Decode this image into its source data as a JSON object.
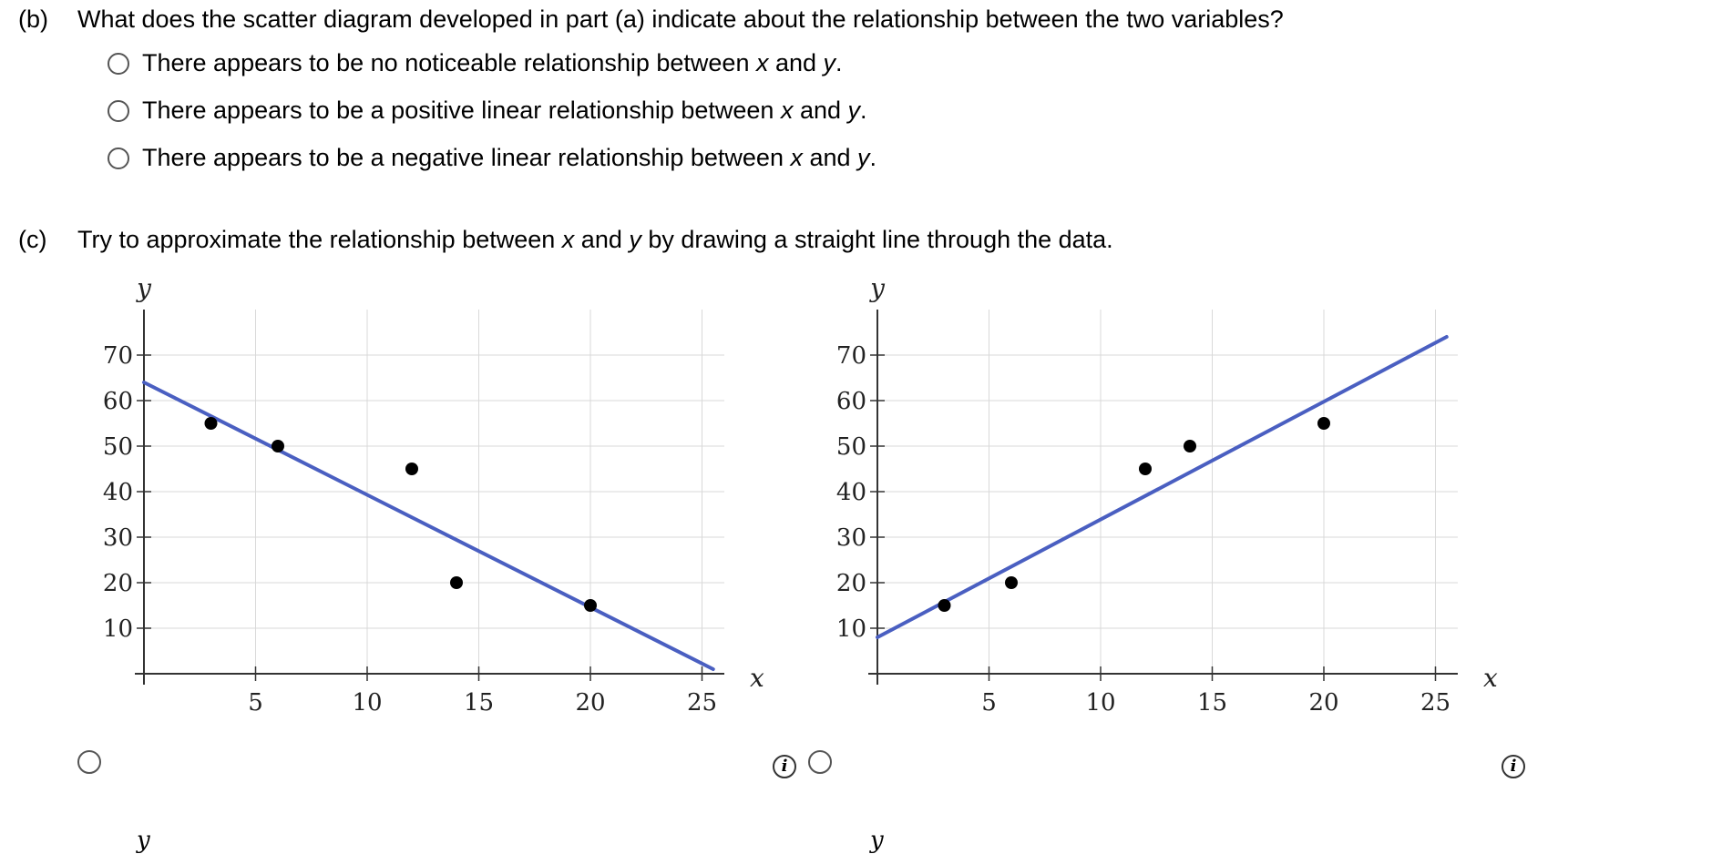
{
  "part_b": {
    "label": "(b)",
    "question": "What does the scatter diagram developed in part (a) indicate about the relationship between the two variables?",
    "options": [
      {
        "before": "There appears to be no noticeable relationship between ",
        "var1": "x",
        "mid": " and ",
        "var2": "y",
        "after": "."
      },
      {
        "before": "There appears to be a positive linear relationship between ",
        "var1": "x",
        "mid": " and ",
        "var2": "y",
        "after": "."
      },
      {
        "before": "There appears to be a negative linear relationship between ",
        "var1": "x",
        "mid": " and ",
        "var2": "y",
        "after": "."
      }
    ]
  },
  "part_c": {
    "label": "(c)",
    "q_before": "Try to approximate the relationship between ",
    "var1": "x",
    "q_mid": " and ",
    "var2": "y",
    "q_after": " by drawing a straight line through the data."
  },
  "info_icon_glyph": "i",
  "cut_label": "y",
  "colors": {
    "line": "#4a5fc1",
    "point": "#000000",
    "grid": "#d9d9d9",
    "axis": "#333333"
  },
  "chart_data": [
    {
      "type": "scatter",
      "title": "",
      "xlabel": "x",
      "ylabel": "y",
      "xlim": [
        0,
        26
      ],
      "ylim": [
        0,
        78
      ],
      "x_ticks": [
        5,
        10,
        15,
        20,
        25
      ],
      "y_ticks": [
        10,
        20,
        30,
        40,
        50,
        60,
        70
      ],
      "grid": true,
      "points": [
        [
          3,
          55
        ],
        [
          6,
          50
        ],
        [
          12,
          45
        ],
        [
          14,
          20
        ],
        [
          20,
          15
        ]
      ],
      "line": {
        "x1": 0,
        "y1": 64,
        "x2": 25.5,
        "y2": 1
      }
    },
    {
      "type": "scatter",
      "title": "",
      "xlabel": "x",
      "ylabel": "y",
      "xlim": [
        0,
        26
      ],
      "ylim": [
        0,
        78
      ],
      "x_ticks": [
        5,
        10,
        15,
        20,
        25
      ],
      "y_ticks": [
        10,
        20,
        30,
        40,
        50,
        60,
        70
      ],
      "grid": true,
      "points": [
        [
          3,
          15
        ],
        [
          6,
          20
        ],
        [
          12,
          45
        ],
        [
          14,
          50
        ],
        [
          20,
          55
        ]
      ],
      "line": {
        "x1": 0,
        "y1": 8,
        "x2": 25.5,
        "y2": 74
      }
    }
  ]
}
